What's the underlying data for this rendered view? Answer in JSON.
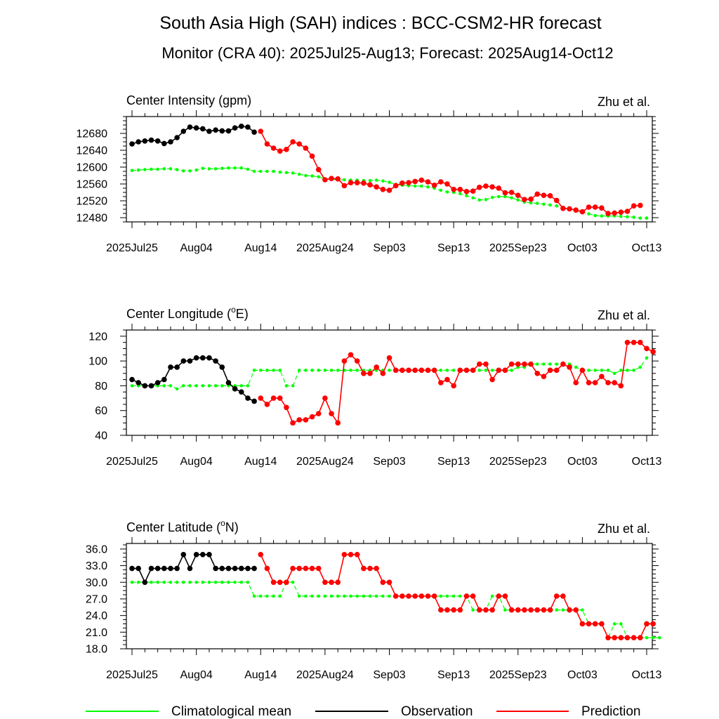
{
  "figure": {
    "title": "South Asia High (SAH) indices : BCC-CSM2-HR forecast",
    "subtitle": "Monitor (CRA 40): 2025Jul25-Aug13; Forecast: 2025Aug14-Oct12"
  },
  "legend": {
    "placement": "bottom",
    "items": [
      {
        "label": "Climatological mean",
        "color": "#00ff00"
      },
      {
        "label": "Observation",
        "color": "#000000"
      },
      {
        "label": "Prediction",
        "color": "#ff0000"
      }
    ]
  },
  "colors": {
    "climatology": "#00ff00",
    "observation": "#000000",
    "prediction": "#ff0000"
  },
  "chart_data": [
    {
      "type": "line",
      "title": "Center Intensity (gpm)",
      "credit": "Zhu et al.",
      "xlim": [
        0,
        80
      ],
      "ylim": [
        12470,
        12720
      ],
      "xticks": [
        {
          "x": 0,
          "label": "2025Jul25"
        },
        {
          "x": 10,
          "label": "Aug04"
        },
        {
          "x": 20,
          "label": "Aug14"
        },
        {
          "x": 30,
          "label": "2025Aug24"
        },
        {
          "x": 40,
          "label": "Sep03"
        },
        {
          "x": 50,
          "label": "Sep13"
        },
        {
          "x": 60,
          "label": "2025Sep23"
        },
        {
          "x": 70,
          "label": "Oct03"
        },
        {
          "x": 80,
          "label": "Oct13"
        }
      ],
      "yticks": [
        {
          "v": 12480,
          "label": "12480"
        },
        {
          "v": 12520,
          "label": "12520"
        },
        {
          "v": 12560,
          "label": "12560"
        },
        {
          "v": 12600,
          "label": "12600"
        },
        {
          "v": 12640,
          "label": "12640"
        },
        {
          "v": 12680,
          "label": "12680"
        }
      ],
      "series": [
        {
          "role": "climatology",
          "x0": 0,
          "values": [
            12592,
            12593,
            12594,
            12595,
            12595,
            12596,
            12596,
            12594,
            12591,
            12591,
            12593,
            12597,
            12596,
            12596,
            12597,
            12598,
            12598,
            12598,
            12595,
            12590,
            12590,
            12590,
            12590,
            12588,
            12587,
            12586,
            12583,
            12580,
            12579,
            12577,
            12572,
            12571,
            12570,
            12570,
            12569,
            12569,
            12568,
            12568,
            12569,
            12567,
            12564,
            12559,
            12557,
            12556,
            12555,
            12555,
            12553,
            12550,
            12545,
            12541,
            12540,
            12537,
            12532,
            12527,
            12522,
            12523,
            12528,
            12530,
            12530,
            12527,
            12522,
            12517,
            12515,
            12514,
            12512,
            12510,
            12508,
            12504,
            12500,
            12497,
            12493,
            12489,
            12485,
            12484,
            12484,
            12484,
            12483,
            12482,
            12481,
            12479,
            12479
          ]
        },
        {
          "role": "observation",
          "x0": 0,
          "values": [
            12655,
            12660,
            12662,
            12664,
            12662,
            12656,
            12660,
            12670,
            12685,
            12695,
            12693,
            12691,
            12685,
            12688,
            12686,
            12686,
            12693,
            12697,
            12695,
            12683
          ]
        },
        {
          "role": "prediction",
          "x0": 20,
          "values": [
            12685,
            12655,
            12645,
            12638,
            12642,
            12660,
            12655,
            12645,
            12626,
            12594,
            12570,
            12573,
            12572,
            12556,
            12563,
            12563,
            12562,
            12558,
            12553,
            12547,
            12545,
            12556,
            12562,
            12563,
            12566,
            12569,
            12565,
            12557,
            12565,
            12560,
            12547,
            12547,
            12542,
            12543,
            12552,
            12555,
            12553,
            12550,
            12539,
            12540,
            12533,
            12523,
            12524,
            12536,
            12533,
            12532,
            12521,
            12502,
            12501,
            12498,
            12494,
            12505,
            12505,
            12503,
            12490,
            12491,
            12493,
            12495,
            12508,
            12509
          ]
        }
      ]
    },
    {
      "type": "line",
      "title": "Center Longitude (",
      "title_sup": "o",
      "title_end": "E)",
      "credit": "Zhu et al.",
      "xlim": [
        0,
        80
      ],
      "ylim": [
        40,
        125
      ],
      "xticks": [
        {
          "x": 0,
          "label": "2025Jul25"
        },
        {
          "x": 10,
          "label": "Aug04"
        },
        {
          "x": 20,
          "label": "Aug14"
        },
        {
          "x": 30,
          "label": "2025Aug24"
        },
        {
          "x": 40,
          "label": "Sep03"
        },
        {
          "x": 50,
          "label": "Sep13"
        },
        {
          "x": 60,
          "label": "2025Sep23"
        },
        {
          "x": 70,
          "label": "Oct03"
        },
        {
          "x": 80,
          "label": "Oct13"
        }
      ],
      "yticks": [
        {
          "v": 40,
          "label": "40"
        },
        {
          "v": 60,
          "label": "60"
        },
        {
          "v": 80,
          "label": "80"
        },
        {
          "v": 100,
          "label": "100"
        },
        {
          "v": 120,
          "label": "120"
        }
      ],
      "series": [
        {
          "role": "climatology",
          "x0": 0,
          "values": [
            80,
            80,
            80,
            80,
            80,
            80,
            80,
            77.5,
            80,
            80,
            80,
            80,
            80,
            80,
            80,
            80,
            80,
            80,
            80,
            92.5,
            92.5,
            92.5,
            92.5,
            92.5,
            80,
            80,
            92.5,
            92.5,
            92.5,
            92.5,
            92.5,
            92.5,
            92.5,
            92.5,
            92.5,
            92.5,
            92.5,
            92.5,
            92.5,
            92.5,
            92.5,
            92.5,
            92.5,
            92.5,
            92.5,
            92.5,
            92.5,
            92.5,
            92.5,
            92.5,
            92.5,
            92.5,
            92.5,
            92.5,
            92.5,
            92.5,
            92.5,
            92.5,
            92.5,
            92.5,
            95,
            95,
            97.5,
            97.5,
            97.5,
            97.5,
            97.5,
            97.5,
            97.5,
            95,
            92.5,
            92.5,
            92.5,
            92.5,
            92.5,
            90,
            92.5,
            92.5,
            92.5,
            95,
            102.5
          ]
        },
        {
          "role": "observation",
          "x0": 0,
          "values": [
            85,
            82.5,
            80,
            80,
            82.5,
            85,
            95,
            95,
            100,
            100,
            102.5,
            102.5,
            102.5,
            100,
            95,
            82.5,
            77.5,
            75,
            70,
            67.5
          ]
        },
        {
          "role": "prediction",
          "x0": 20,
          "values": [
            70,
            65,
            70,
            70,
            62.5,
            50,
            52.5,
            52.5,
            55,
            57.5,
            70,
            57.5,
            50,
            100,
            105,
            100,
            90,
            90,
            95,
            90,
            102.5,
            92.5,
            92.5,
            92.5,
            92.5,
            92.5,
            92.5,
            92.5,
            82.5,
            85,
            80,
            92.5,
            92.5,
            92.5,
            97.5,
            97.5,
            85,
            92.5,
            92.5,
            97.5,
            97.5,
            97.5,
            97.5,
            90,
            87.5,
            92.5,
            92.5,
            97.5,
            95,
            82.5,
            92.5,
            82.5,
            82.5,
            87.5,
            82.5,
            82.5,
            80,
            115,
            115,
            115,
            110,
            107.5
          ]
        }
      ]
    },
    {
      "type": "line",
      "title": "Center Latitude (",
      "title_sup": "o",
      "title_end": "N)",
      "credit": "Zhu et al.",
      "xlim": [
        0,
        80
      ],
      "ylim": [
        18,
        37
      ],
      "xticks": [
        {
          "x": 0,
          "label": "2025Jul25"
        },
        {
          "x": 10,
          "label": "Aug04"
        },
        {
          "x": 20,
          "label": "Aug14"
        },
        {
          "x": 30,
          "label": "2025Aug24"
        },
        {
          "x": 40,
          "label": "Sep03"
        },
        {
          "x": 50,
          "label": "Sep13"
        },
        {
          "x": 60,
          "label": "2025Sep23"
        },
        {
          "x": 70,
          "label": "Oct03"
        },
        {
          "x": 80,
          "label": "Oct13"
        }
      ],
      "yticks": [
        {
          "v": 18,
          "label": "18.0"
        },
        {
          "v": 21,
          "label": "21.0"
        },
        {
          "v": 24,
          "label": "24.0"
        },
        {
          "v": 27,
          "label": "27.0"
        },
        {
          "v": 30,
          "label": "30.0"
        },
        {
          "v": 33,
          "label": "33.0"
        },
        {
          "v": 36,
          "label": "36.0"
        }
      ],
      "series": [
        {
          "role": "climatology",
          "x0": 0,
          "values": [
            30,
            30,
            30,
            30,
            30,
            30,
            30,
            30,
            30,
            30,
            30,
            30,
            30,
            30,
            30,
            30,
            30,
            30,
            30,
            27.5,
            27.5,
            27.5,
            27.5,
            27.5,
            30,
            30,
            27.5,
            27.5,
            27.5,
            27.5,
            27.5,
            27.5,
            27.5,
            27.5,
            27.5,
            27.5,
            27.5,
            27.5,
            27.5,
            27.5,
            27.5,
            27.5,
            27.5,
            27.5,
            27.5,
            27.5,
            27.5,
            27.5,
            27.5,
            27.5,
            27.5,
            27.5,
            27.5,
            25,
            25,
            25,
            27.5,
            27.5,
            25,
            25,
            25,
            25,
            25,
            25,
            25,
            25,
            25,
            25,
            25,
            25,
            25,
            22.5,
            22.5,
            22.5,
            20,
            22.5,
            22.5,
            20,
            20,
            20,
            20,
            20,
            20
          ]
        },
        {
          "role": "observation",
          "x0": 0,
          "values": [
            32.5,
            32.5,
            30,
            32.5,
            32.5,
            32.5,
            32.5,
            32.5,
            35,
            32.5,
            35,
            35,
            35,
            32.5,
            32.5,
            32.5,
            32.5,
            32.5,
            32.5,
            32.5
          ]
        },
        {
          "role": "prediction",
          "x0": 20,
          "values": [
            35,
            32.5,
            30,
            30,
            30,
            32.5,
            32.5,
            32.5,
            32.5,
            32.5,
            30,
            30,
            30,
            35,
            35,
            35,
            32.5,
            32.5,
            32.5,
            30,
            30,
            27.5,
            27.5,
            27.5,
            27.5,
            27.5,
            27.5,
            27.5,
            25,
            25,
            25,
            25,
            27.5,
            27.5,
            25,
            25,
            25,
            27.5,
            27.5,
            25,
            25,
            25,
            25,
            25,
            25,
            25,
            27.5,
            27.5,
            25,
            25,
            22.5,
            22.5,
            22.5,
            22.5,
            20,
            20,
            20,
            20,
            20,
            20,
            22.5,
            22.5
          ]
        }
      ]
    }
  ]
}
